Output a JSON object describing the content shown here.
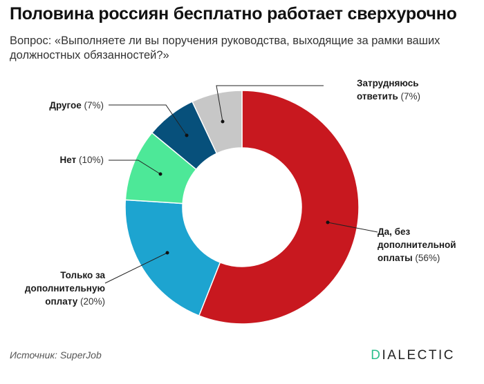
{
  "title": "Половина россиян бесплатно работает сверхурочно",
  "subtitle": "Вопрос: «Выполняете ли вы поручения руководства, выходящие за рамки ваших должностных обязанностей?»",
  "chart_data": {
    "type": "pie",
    "variant": "donut",
    "categories": [
      "Да, без дополнительной оплаты",
      "Только за дополнительную оплату",
      "Нет",
      "Другое",
      "Затрудняюсь ответить"
    ],
    "values": [
      56,
      20,
      10,
      7,
      7
    ],
    "unit": "%",
    "colors": [
      "#c8181f",
      "#1da4d0",
      "#4de898",
      "#07507b",
      "#c7c7c7"
    ],
    "labels": [
      {
        "lines": [
          "Да, без",
          "дополнительной",
          "оплаты"
        ],
        "pct": "(56%)"
      },
      {
        "lines": [
          "Только за",
          "дополнительную",
          "оплату"
        ],
        "pct": "(20%)"
      },
      {
        "lines": [
          "Нет"
        ],
        "pct": "(10%)"
      },
      {
        "lines": [
          "Другое"
        ],
        "pct": "(7%)"
      },
      {
        "lines": [
          "Затрудняюсь",
          "ответить"
        ],
        "pct": "(7%)"
      }
    ]
  },
  "footer": {
    "source_label": "Источник:",
    "source_name": "SuperJob",
    "brand_accent": "D",
    "brand_rest": "IALECTIC"
  }
}
